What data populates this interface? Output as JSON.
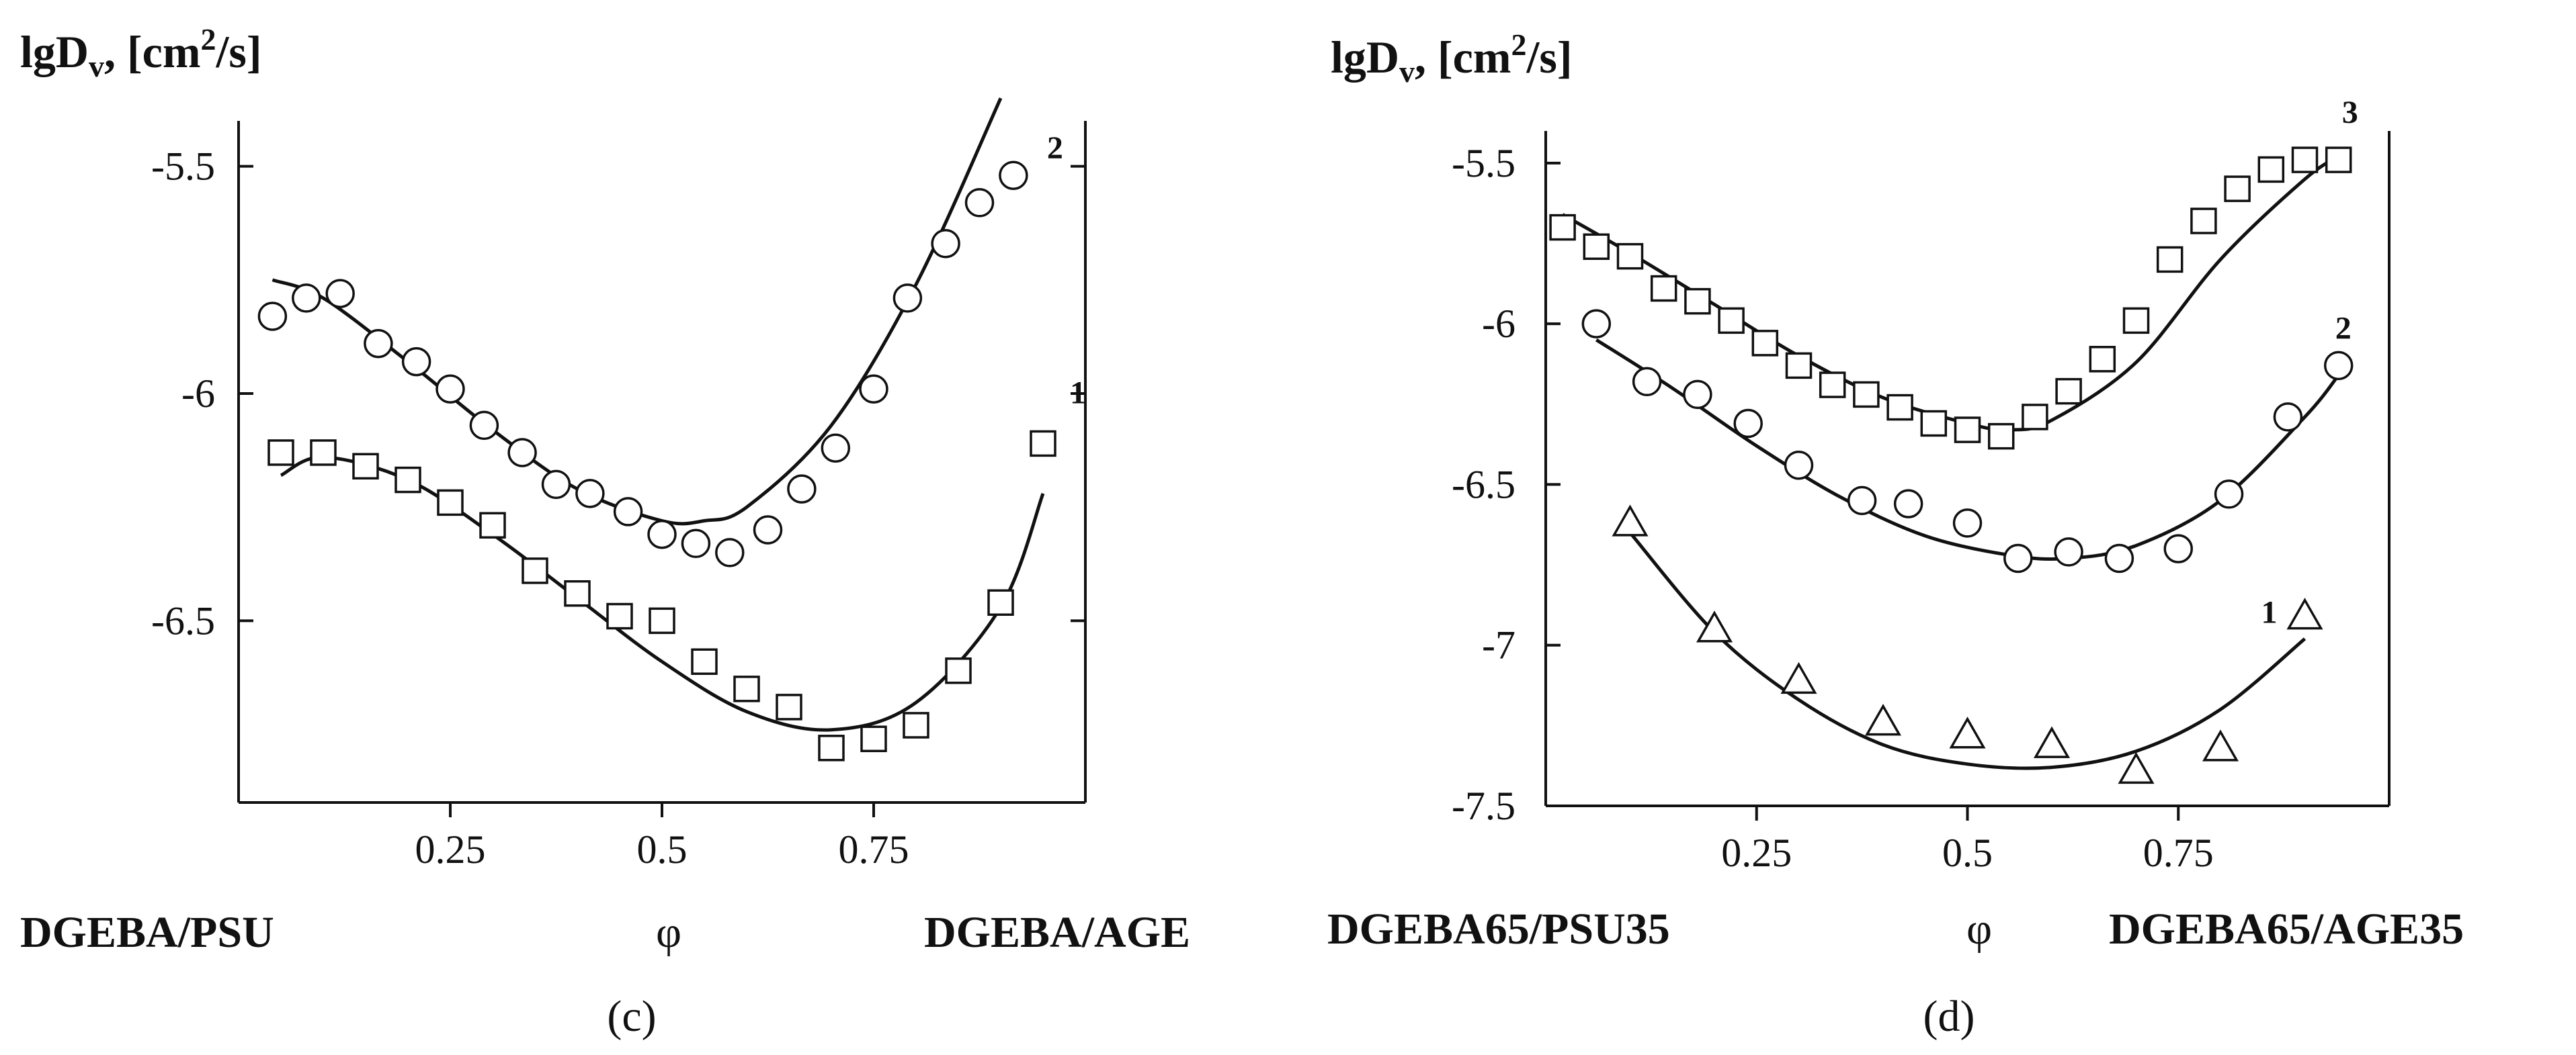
{
  "chart_data": [
    {
      "id": "c",
      "type": "scatter",
      "panel_label": "(c)",
      "ylabel_main": "lgD",
      "ylabel_sub": "v",
      "ylabel_rest": ", [cm",
      "ylabel_sup": "2",
      "ylabel_end": "/s]",
      "xlabel": "φ",
      "left_label": "DGEBA/PSU",
      "right_label": "DGEBA/AGE",
      "xlim": [
        0,
        1
      ],
      "ylim": [
        -6.9,
        -5.4
      ],
      "xticks": [
        0.25,
        0.5,
        0.75
      ],
      "xtick_labels": [
        "0.25",
        "0.5",
        "0.75"
      ],
      "yticks": [
        -5.5,
        -6,
        -6.5
      ],
      "ytick_labels": [
        "-5.5",
        "-6",
        "-6.5"
      ],
      "series": [
        {
          "name": "2",
          "marker": "circle",
          "x": [
            0.04,
            0.08,
            0.12,
            0.165,
            0.21,
            0.25,
            0.29,
            0.335,
            0.375,
            0.415,
            0.46,
            0.5,
            0.54,
            0.58,
            0.625,
            0.665,
            0.705,
            0.75,
            0.79,
            0.835,
            0.875,
            0.915
          ],
          "y": [
            -5.83,
            -5.79,
            -5.78,
            -5.89,
            -5.93,
            -5.99,
            -6.07,
            -6.13,
            -6.2,
            -6.22,
            -6.26,
            -6.31,
            -6.33,
            -6.35,
            -6.3,
            -6.21,
            -6.12,
            -5.99,
            -5.79,
            -5.67,
            -5.58,
            -5.52
          ],
          "fit_x": [
            0.04,
            0.1,
            0.2,
            0.3,
            0.4,
            0.5,
            0.55,
            0.6,
            0.7,
            0.8,
            0.9
          ],
          "fit_y": [
            -5.75,
            -5.79,
            -5.93,
            -6.08,
            -6.21,
            -6.28,
            -6.28,
            -6.25,
            -6.07,
            -5.76,
            -5.35
          ]
        },
        {
          "name": "1",
          "marker": "square",
          "x": [
            0.05,
            0.1,
            0.15,
            0.2,
            0.25,
            0.3,
            0.35,
            0.4,
            0.45,
            0.5,
            0.55,
            0.6,
            0.65,
            0.7,
            0.75,
            0.8,
            0.85,
            0.9,
            0.95
          ],
          "y": [
            -6.13,
            -6.13,
            -6.16,
            -6.19,
            -6.24,
            -6.29,
            -6.39,
            -6.44,
            -6.49,
            -6.5,
            -6.59,
            -6.65,
            -6.69,
            -6.78,
            -6.76,
            -6.73,
            -6.61,
            -6.46,
            -6.11
          ],
          "fit_x": [
            0.05,
            0.1,
            0.2,
            0.3,
            0.4,
            0.5,
            0.6,
            0.7,
            0.8,
            0.9,
            0.95
          ],
          "fit_y": [
            -6.18,
            -6.14,
            -6.19,
            -6.31,
            -6.45,
            -6.59,
            -6.7,
            -6.74,
            -6.68,
            -6.47,
            -6.22
          ]
        }
      ]
    },
    {
      "id": "d",
      "type": "scatter",
      "panel_label": "(d)",
      "ylabel_main": "lgD",
      "ylabel_sub": "v",
      "ylabel_rest": ", [cm",
      "ylabel_sup": "2",
      "ylabel_end": "/s]",
      "xlabel": "φ",
      "left_label": "DGEBA65/PSU35",
      "right_label": "DGEBA65/AGE35",
      "xlim": [
        0,
        1
      ],
      "ylim": [
        -7.5,
        -5.4
      ],
      "xticks": [
        0.25,
        0.5,
        0.75
      ],
      "xtick_labels": [
        "0.25",
        "0.5",
        "0.75"
      ],
      "yticks": [
        -5.5,
        -6,
        -6.5,
        -7,
        -7.5
      ],
      "ytick_labels": [
        "-5.5",
        "-6",
        "-6.5",
        "-7",
        "-7.5"
      ],
      "series": [
        {
          "name": "3",
          "marker": "square",
          "x": [
            0.02,
            0.06,
            0.1,
            0.14,
            0.18,
            0.22,
            0.26,
            0.3,
            0.34,
            0.38,
            0.42,
            0.46,
            0.5,
            0.54,
            0.58,
            0.62,
            0.66,
            0.7,
            0.74,
            0.78,
            0.82,
            0.86,
            0.9,
            0.94
          ],
          "y": [
            -5.7,
            -5.76,
            -5.79,
            -5.89,
            -5.93,
            -5.99,
            -6.06,
            -6.13,
            -6.19,
            -6.22,
            -6.26,
            -6.31,
            -6.33,
            -6.35,
            -6.29,
            -6.21,
            -6.11,
            -5.99,
            -5.8,
            -5.68,
            -5.58,
            -5.52,
            -5.49,
            -5.49
          ],
          "fit_x": [
            0.02,
            0.1,
            0.2,
            0.3,
            0.4,
            0.5,
            0.55,
            0.6,
            0.7,
            0.8,
            0.9,
            0.94
          ],
          "fit_y": [
            -5.66,
            -5.78,
            -5.94,
            -6.1,
            -6.23,
            -6.31,
            -6.33,
            -6.3,
            -6.12,
            -5.8,
            -5.55,
            -5.48
          ]
        },
        {
          "name": "2",
          "marker": "circle",
          "x": [
            0.06,
            0.12,
            0.18,
            0.24,
            0.3,
            0.375,
            0.43,
            0.5,
            0.56,
            0.62,
            0.68,
            0.75,
            0.81,
            0.88,
            0.94
          ],
          "y": [
            -6.0,
            -6.18,
            -6.22,
            -6.31,
            -6.44,
            -6.55,
            -6.56,
            -6.62,
            -6.73,
            -6.71,
            -6.73,
            -6.7,
            -6.53,
            -6.29,
            -6.13
          ],
          "fit_x": [
            0.06,
            0.15,
            0.25,
            0.35,
            0.45,
            0.55,
            0.62,
            0.7,
            0.8,
            0.9,
            0.94
          ],
          "fit_y": [
            -6.05,
            -6.2,
            -6.38,
            -6.54,
            -6.66,
            -6.72,
            -6.73,
            -6.69,
            -6.55,
            -6.29,
            -6.16
          ]
        },
        {
          "name": "1",
          "marker": "triangle",
          "x": [
            0.1,
            0.2,
            0.3,
            0.4,
            0.5,
            0.6,
            0.7,
            0.8,
            0.9
          ],
          "y": [
            -6.62,
            -6.95,
            -7.11,
            -7.24,
            -7.28,
            -7.31,
            -7.39,
            -7.32,
            -6.91
          ],
          "fit_x": [
            0.1,
            0.2,
            0.3,
            0.4,
            0.5,
            0.6,
            0.7,
            0.8,
            0.9
          ],
          "fit_y": [
            -6.65,
            -6.96,
            -7.17,
            -7.31,
            -7.37,
            -7.38,
            -7.33,
            -7.2,
            -6.98
          ]
        }
      ]
    }
  ]
}
